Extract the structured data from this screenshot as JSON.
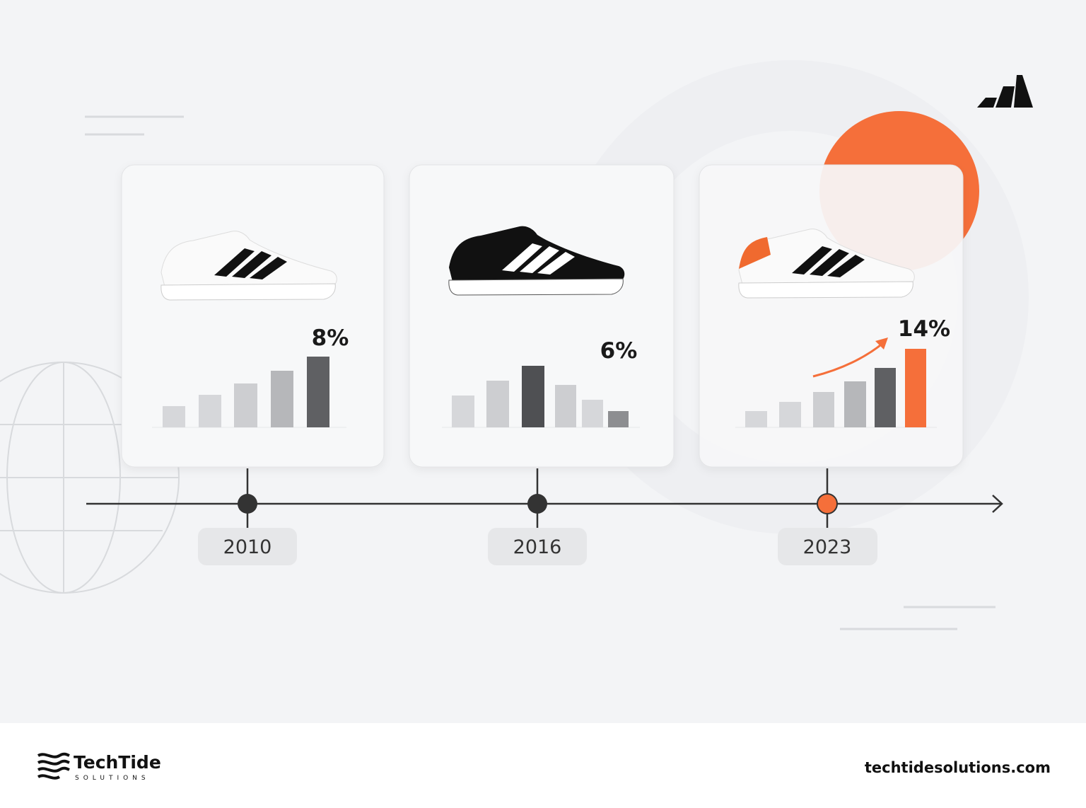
{
  "cards": [
    {
      "growth": "8%",
      "year": "2010"
    },
    {
      "growth": "6%",
      "year": "2016"
    },
    {
      "growth": "14%",
      "year": "2023"
    }
  ],
  "footer": {
    "brand": "TechTide",
    "tagline": "SOLUTIONS",
    "website": "techtidesolutions.com"
  }
}
